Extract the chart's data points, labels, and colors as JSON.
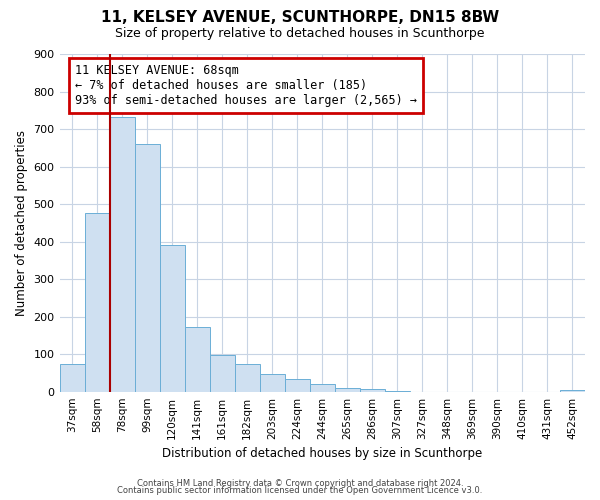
{
  "title": "11, KELSEY AVENUE, SCUNTHORPE, DN15 8BW",
  "subtitle": "Size of property relative to detached houses in Scunthorpe",
  "xlabel": "Distribution of detached houses by size in Scunthorpe",
  "ylabel": "Number of detached properties",
  "bin_labels": [
    "37sqm",
    "58sqm",
    "78sqm",
    "99sqm",
    "120sqm",
    "141sqm",
    "161sqm",
    "182sqm",
    "203sqm",
    "224sqm",
    "244sqm",
    "265sqm",
    "286sqm",
    "307sqm",
    "327sqm",
    "348sqm",
    "369sqm",
    "390sqm",
    "410sqm",
    "431sqm",
    "452sqm"
  ],
  "bar_heights": [
    75,
    475,
    733,
    660,
    390,
    172,
    98,
    75,
    46,
    33,
    20,
    10,
    7,
    3,
    0,
    0,
    0,
    0,
    0,
    0,
    5
  ],
  "bar_color": "#cfe0f1",
  "bar_edge_color": "#6baed6",
  "annotation_title": "11 KELSEY AVENUE: 68sqm",
  "annotation_line1": "← 7% of detached houses are smaller (185)",
  "annotation_line2": "93% of semi-detached houses are larger (2,565) →",
  "annotation_box_color": "#ffffff",
  "annotation_box_edge_color": "#cc0000",
  "property_line_color": "#aa0000",
  "property_line_bin_index": 1.5,
  "ylim": [
    0,
    900
  ],
  "yticks": [
    0,
    100,
    200,
    300,
    400,
    500,
    600,
    700,
    800,
    900
  ],
  "footer_line1": "Contains HM Land Registry data © Crown copyright and database right 2024.",
  "footer_line2": "Contains public sector information licensed under the Open Government Licence v3.0.",
  "background_color": "#ffffff",
  "grid_color": "#c8d4e4"
}
